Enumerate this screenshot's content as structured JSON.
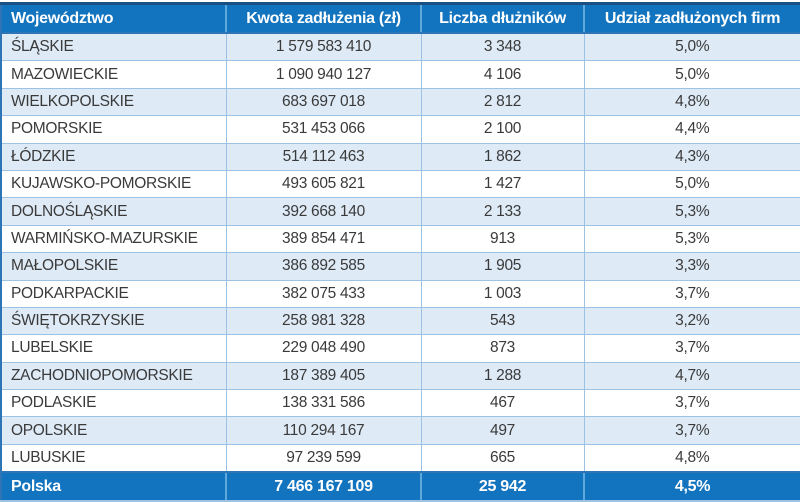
{
  "table": {
    "columns": [
      "Województwo",
      "Kwota zadłużenia (zł)",
      "Liczba dłużników",
      "Udział zadłużonych firm"
    ],
    "rows": [
      [
        "ŚLĄSKIE",
        "1 579 583 410",
        "3 348",
        "5,0%"
      ],
      [
        "MAZOWIECKIE",
        "1 090 940 127",
        "4 106",
        "5,0%"
      ],
      [
        "WIELKOPOLSKIE",
        "683 697 018",
        "2 812",
        "4,8%"
      ],
      [
        "POMORSKIE",
        "531 453 066",
        "2 100",
        "4,4%"
      ],
      [
        "ŁÓDZKIE",
        "514 112 463",
        "1 862",
        "4,3%"
      ],
      [
        "KUJAWSKO-POMORSKIE",
        "493 605 821",
        "1 427",
        "5,0%"
      ],
      [
        "DOLNOŚLĄSKIE",
        "392 668 140",
        "2 133",
        "5,3%"
      ],
      [
        "WARMIŃSKO-MAZURSKIE",
        "389 854 471",
        "913",
        "5,3%"
      ],
      [
        "MAŁOPOLSKIE",
        "386 892 585",
        "1 905",
        "3,3%"
      ],
      [
        "PODKARPACKIE",
        "382 075 433",
        "1 003",
        "3,7%"
      ],
      [
        "ŚWIĘTOKRZYSKIE",
        "258 981 328",
        "543",
        "3,2%"
      ],
      [
        "LUBELSKIE",
        "229 048 490",
        "873",
        "3,7%"
      ],
      [
        "ZACHODNIOPOMORSKIE",
        "187 389 405",
        "1 288",
        "4,7%"
      ],
      [
        "PODLASKIE",
        "138 331 586",
        "467",
        "3,7%"
      ],
      [
        "OPOLSKIE",
        "110 294 167",
        "497",
        "3,7%"
      ],
      [
        "LUBUSKIE",
        "97 239 599",
        "665",
        "4,8%"
      ]
    ],
    "footer": [
      "Polska",
      "7 466 167 109",
      "25 942",
      "4,5%"
    ]
  },
  "chart_data": {
    "type": "table",
    "columns": [
      "Województwo",
      "Kwota zadłużenia (zł)",
      "Liczba dłużników",
      "Udział zadłużonych firm"
    ],
    "rows": [
      {
        "wojewodztwo": "ŚLĄSKIE",
        "kwota_zadluzenia_zl": 1579583410,
        "liczba_dluznikow": 3348,
        "udzial_zadluzonych_firm_pct": 5.0
      },
      {
        "wojewodztwo": "MAZOWIECKIE",
        "kwota_zadluzenia_zl": 1090940127,
        "liczba_dluznikow": 4106,
        "udzial_zadluzonych_firm_pct": 5.0
      },
      {
        "wojewodztwo": "WIELKOPOLSKIE",
        "kwota_zadluzenia_zl": 683697018,
        "liczba_dluznikow": 2812,
        "udzial_zadluzonych_firm_pct": 4.8
      },
      {
        "wojewodztwo": "POMORSKIE",
        "kwota_zadluzenia_zl": 531453066,
        "liczba_dluznikow": 2100,
        "udzial_zadluzonych_firm_pct": 4.4
      },
      {
        "wojewodztwo": "ŁÓDZKIE",
        "kwota_zadluzenia_zl": 514112463,
        "liczba_dluznikow": 1862,
        "udzial_zadluzonych_firm_pct": 4.3
      },
      {
        "wojewodztwo": "KUJAWSKO-POMORSKIE",
        "kwota_zadluzenia_zl": 493605821,
        "liczba_dluznikow": 1427,
        "udzial_zadluzonych_firm_pct": 5.0
      },
      {
        "wojewodztwo": "DOLNOŚLĄSKIE",
        "kwota_zadluzenia_zl": 392668140,
        "liczba_dluznikow": 2133,
        "udzial_zadluzonych_firm_pct": 5.3
      },
      {
        "wojewodztwo": "WARMIŃSKO-MAZURSKIE",
        "kwota_zadluzenia_zl": 389854471,
        "liczba_dluznikow": 913,
        "udzial_zadluzonych_firm_pct": 5.3
      },
      {
        "wojewodztwo": "MAŁOPOLSKIE",
        "kwota_zadluzenia_zl": 386892585,
        "liczba_dluznikow": 1905,
        "udzial_zadluzonych_firm_pct": 3.3
      },
      {
        "wojewodztwo": "PODKARPACKIE",
        "kwota_zadluzenia_zl": 382075433,
        "liczba_dluznikow": 1003,
        "udzial_zadluzonych_firm_pct": 3.7
      },
      {
        "wojewodztwo": "ŚWIĘTOKRZYSKIE",
        "kwota_zadluzenia_zl": 258981328,
        "liczba_dluznikow": 543,
        "udzial_zadluzonych_firm_pct": 3.2
      },
      {
        "wojewodztwo": "LUBELSKIE",
        "kwota_zadluzenia_zl": 229048490,
        "liczba_dluznikow": 873,
        "udzial_zadluzonych_firm_pct": 3.7
      },
      {
        "wojewodztwo": "ZACHODNIOPOMORSKIE",
        "kwota_zadluzenia_zl": 187389405,
        "liczba_dluznikow": 1288,
        "udzial_zadluzonych_firm_pct": 4.7
      },
      {
        "wojewodztwo": "PODLASKIE",
        "kwota_zadluzenia_zl": 138331586,
        "liczba_dluznikow": 467,
        "udzial_zadluzonych_firm_pct": 3.7
      },
      {
        "wojewodztwo": "OPOLSKIE",
        "kwota_zadluzenia_zl": 110294167,
        "liczba_dluznikow": 497,
        "udzial_zadluzonych_firm_pct": 3.7
      },
      {
        "wojewodztwo": "LUBUSKIE",
        "kwota_zadluzenia_zl": 97239599,
        "liczba_dluznikow": 665,
        "udzial_zadluzonych_firm_pct": 4.8
      }
    ],
    "totals_row": {
      "wojewodztwo": "Polska",
      "kwota_zadluzenia_zl": 7466167109,
      "liczba_dluznikow": 25942,
      "udzial_zadluzonych_firm_pct": 4.5
    },
    "layout": {
      "banding": "alternating light blue rows",
      "header_position": "top",
      "totals_position": "bottom"
    }
  },
  "colors": {
    "header_background": "#1273BE",
    "footer_background": "#1273BE",
    "header_text": "#FFFFFF",
    "band_row_background": "#DEEAF6",
    "plain_row_background": "#FFFFFF",
    "grid_line": "#9CC2E5",
    "outer_border": "#2E75B6",
    "top_accent_border": "#1A5182",
    "body_text": "#3A3A3A"
  }
}
